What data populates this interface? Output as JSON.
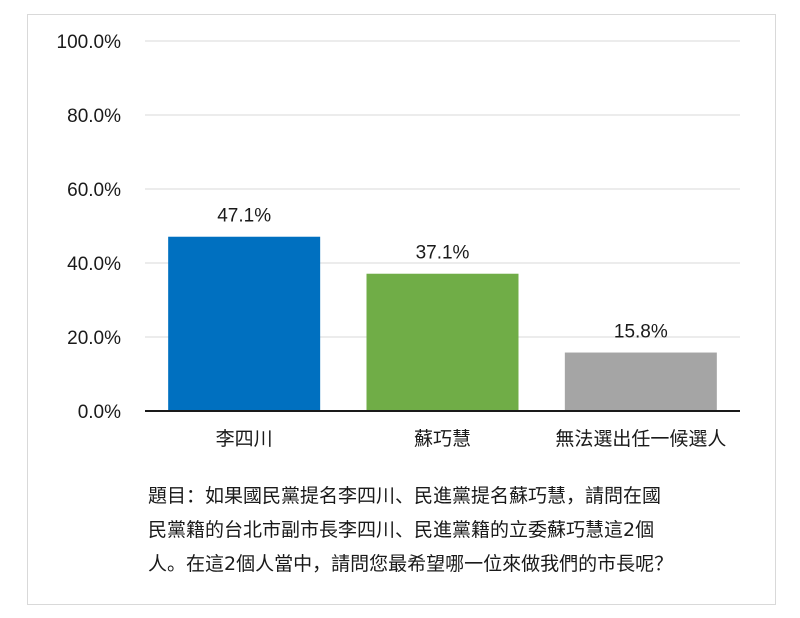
{
  "chart_data": {
    "type": "bar",
    "categories": [
      "李四川",
      "蘇巧慧",
      "無法選出任一候選人"
    ],
    "values": [
      47.1,
      37.1,
      15.8
    ],
    "value_labels": [
      "47.1%",
      "37.1%",
      "15.8%"
    ],
    "colors": [
      "#0070c0",
      "#70ad47",
      "#a5a5a5"
    ],
    "y_ticks": [
      "0.0%",
      "20.0%",
      "40.0%",
      "60.0%",
      "80.0%",
      "100.0%"
    ],
    "ylim": [
      0,
      100
    ],
    "grid": true,
    "legend": "none"
  },
  "note": {
    "lines": [
      "題目：如果國民黨提名李四川、民進黨提名蘇巧慧，請問在國",
      "民黨籍的台北市副市長李四川、民進黨籍的立委蘇巧慧這2個",
      "人。在這2個人當中，請問您最希望哪一位來做我們的市長呢？"
    ]
  }
}
